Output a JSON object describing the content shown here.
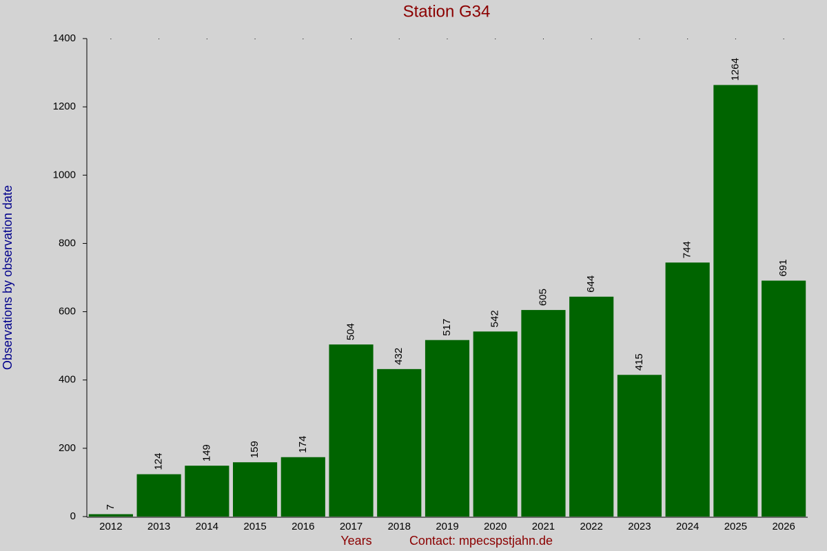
{
  "chart_data": {
    "type": "bar",
    "title": "Station G34",
    "y_label": "Observations by observation date",
    "x_label": "Years",
    "contact": "Contact: mpecspstjahn.de",
    "categories": [
      "2012",
      "2013",
      "2014",
      "2015",
      "2016",
      "2017",
      "2018",
      "2019",
      "2020",
      "2021",
      "2022",
      "2023",
      "2024",
      "2025",
      "2026"
    ],
    "values": [
      7,
      124,
      149,
      159,
      174,
      504,
      432,
      517,
      542,
      605,
      644,
      415,
      744,
      1264,
      691
    ],
    "color": "#006400",
    "ylim": [
      0,
      1400
    ],
    "yticks": [
      0,
      200,
      400,
      600,
      800,
      1000,
      1200,
      1400
    ],
    "grid": false
  }
}
